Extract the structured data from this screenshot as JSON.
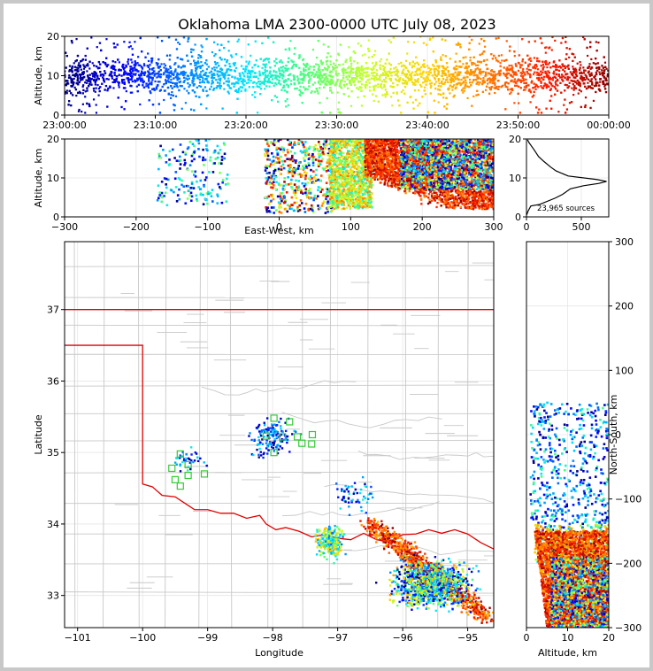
{
  "title": "Oklahoma LMA 2300-0000 UTC July 08, 2023",
  "chart_data": [
    {
      "id": "altitude-time",
      "type": "scatter",
      "ylabel": "Altitude, km",
      "xlim": [
        "23:00:00",
        "00:00:00"
      ],
      "ylim": [
        0,
        20
      ],
      "x_ticks": [
        "23:00:00",
        "23:10:00",
        "23:20:00",
        "23:30:00",
        "23:40:00",
        "23:50:00",
        "00:00:00"
      ],
      "y_ticks": [
        "0",
        "10",
        "20"
      ],
      "color_by": "time",
      "colormap": [
        "#00007f",
        "#0000ff",
        "#0080ff",
        "#00e5ff",
        "#4dff7a",
        "#c8ff2e",
        "#ffd200",
        "#ff7a00",
        "#ff1a00",
        "#8b0000"
      ],
      "grid": true
    },
    {
      "id": "altitude-eastwest",
      "type": "scatter",
      "xlabel": "East-West, km",
      "ylabel": "Altitude, km",
      "xlim": [
        -300,
        300
      ],
      "ylim": [
        0,
        20
      ],
      "x_ticks": [
        "−300",
        "−200",
        "−100",
        "0",
        "100",
        "200",
        "300"
      ],
      "y_ticks": [
        "0",
        "10",
        "20"
      ],
      "grid": true
    },
    {
      "id": "altitude-histogram",
      "type": "line",
      "xlim": [
        0,
        750
      ],
      "ylim": [
        0,
        20
      ],
      "x_ticks": [
        "0",
        "500"
      ],
      "y_ticks": [
        "0",
        "10",
        "20"
      ],
      "annotation": "23,965 sources",
      "profile": [
        [
          0,
          0.4
        ],
        [
          15,
          1.5
        ],
        [
          40,
          2.8
        ],
        [
          120,
          3.2
        ],
        [
          260,
          4.8
        ],
        [
          330,
          5.8
        ],
        [
          400,
          7.2
        ],
        [
          520,
          8.0
        ],
        [
          660,
          8.6
        ],
        [
          730,
          9.1
        ],
        [
          640,
          9.6
        ],
        [
          380,
          10.5
        ],
        [
          270,
          11.8
        ],
        [
          220,
          12.8
        ],
        [
          160,
          14.2
        ],
        [
          110,
          15.5
        ],
        [
          70,
          17.2
        ],
        [
          40,
          18.4
        ],
        [
          20,
          19.2
        ],
        [
          10,
          19.8
        ]
      ],
      "grid": true
    },
    {
      "id": "plan-view",
      "type": "scatter",
      "xlabel": "Longitude",
      "ylabel": "Latitude",
      "xlim": [
        -101.2,
        -94.6
      ],
      "ylim": [
        32.55,
        37.95
      ],
      "x_ticks": [
        "−101",
        "−100",
        "−99",
        "−98",
        "−97",
        "−96",
        "−95"
      ],
      "y_ticks": [
        "33",
        "34",
        "35",
        "36",
        "37"
      ],
      "state_border_color": "#e00000",
      "county_line_color": "#c8c8c8",
      "station_color": "#33cc33",
      "stations": [
        [
          -97.98,
          35.48
        ],
        [
          -97.74,
          35.43
        ],
        [
          -98.1,
          35.23
        ],
        [
          -97.85,
          35.22
        ],
        [
          -97.62,
          35.22
        ],
        [
          -97.39,
          35.25
        ],
        [
          -97.98,
          35.0
        ],
        [
          -97.55,
          35.13
        ],
        [
          -97.4,
          35.12
        ],
        [
          -99.42,
          34.98
        ],
        [
          -99.3,
          34.83
        ],
        [
          -99.55,
          34.78
        ],
        [
          -99.3,
          34.68
        ],
        [
          -99.05,
          34.7
        ],
        [
          -99.5,
          34.62
        ],
        [
          -99.42,
          34.53
        ]
      ],
      "grid": true
    },
    {
      "id": "altitude-northsouth",
      "type": "scatter",
      "xlabel": "Altitude, km",
      "ylabel": "North-South, km",
      "xlim": [
        0,
        20
      ],
      "ylim": [
        -300,
        300
      ],
      "x_ticks": [
        "0",
        "10",
        "20"
      ],
      "y_ticks": [
        "−300",
        "−200",
        "−100",
        "0",
        "100",
        "200",
        "300"
      ],
      "grid": true
    }
  ]
}
